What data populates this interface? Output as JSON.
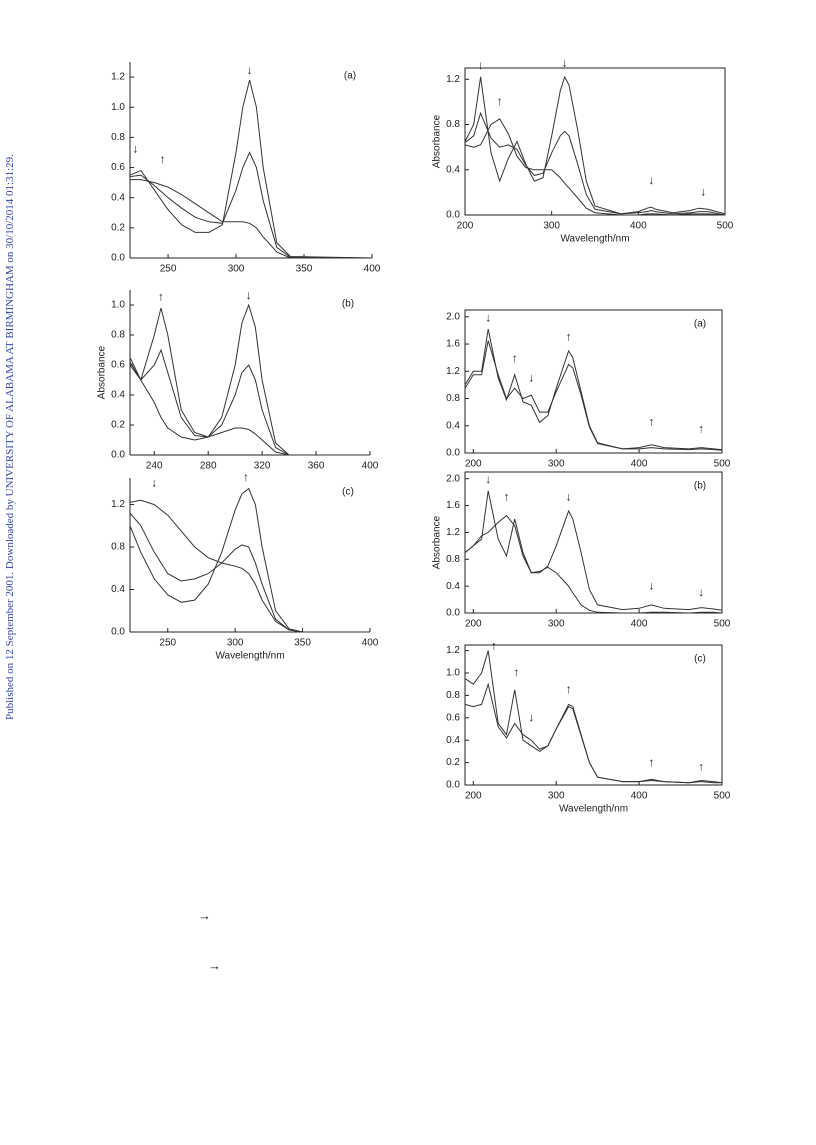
{
  "sidebar": "Published on 12 September 2001. Downloaded by UNIVERSITY OF ALABAMA AT BIRMINGHAM on 30/10/2014 01:31:29.",
  "arrows": [
    "→",
    "→"
  ],
  "chart_data": [
    {
      "type": "line",
      "frame": "axes",
      "panel": "(a)",
      "color": "#333",
      "x": [
        222,
        230,
        240,
        250,
        260,
        270,
        280,
        290,
        300,
        305,
        310,
        315,
        320,
        330,
        340,
        400
      ],
      "series": [
        {
          "values": [
            0.55,
            0.58,
            0.45,
            0.32,
            0.22,
            0.17,
            0.17,
            0.22,
            0.7,
            1.0,
            1.18,
            1.0,
            0.6,
            0.1,
            0.01,
            0
          ]
        },
        {
          "values": [
            0.54,
            0.55,
            0.48,
            0.4,
            0.33,
            0.27,
            0.24,
            0.23,
            0.45,
            0.6,
            0.7,
            0.6,
            0.38,
            0.07,
            0.005,
            0
          ]
        },
        {
          "values": [
            0.52,
            0.52,
            0.5,
            0.47,
            0.42,
            0.36,
            0.3,
            0.24,
            0.24,
            0.24,
            0.23,
            0.2,
            0.14,
            0.04,
            0,
            0
          ]
        }
      ],
      "xlim": [
        222,
        400
      ],
      "xticks": [
        250,
        300,
        350,
        400
      ],
      "ylim": [
        0,
        1.3
      ],
      "yticks": [
        {
          "value": 0,
          "label": "0.0"
        },
        0.2,
        0.4,
        0.6,
        0.8,
        {
          "value": 1,
          "label": "1.0"
        },
        1.2
      ],
      "annotations": [
        {
          "text": "↓",
          "x": 226,
          "y": 0.72
        },
        {
          "text": "↑",
          "x": 246,
          "y": 0.65
        },
        {
          "text": "↓",
          "x": 310,
          "y": 1.24
        }
      ]
    },
    {
      "type": "line",
      "frame": "axes",
      "panel": "(b)",
      "ylabel": "Absorbance",
      "color": "#333",
      "x": [
        222,
        230,
        240,
        245,
        250,
        260,
        270,
        280,
        290,
        300,
        305,
        310,
        315,
        320,
        330,
        340,
        400
      ],
      "series": [
        {
          "values": [
            0.65,
            0.5,
            0.8,
            0.98,
            0.8,
            0.3,
            0.15,
            0.12,
            0.15,
            0.18,
            0.18,
            0.17,
            0.14,
            0.1,
            0.02,
            0,
            0
          ]
        },
        {
          "values": [
            0.62,
            0.5,
            0.6,
            0.7,
            0.55,
            0.25,
            0.13,
            0.12,
            0.2,
            0.4,
            0.55,
            0.6,
            0.5,
            0.3,
            0.05,
            0,
            0
          ]
        },
        {
          "values": [
            0.6,
            0.5,
            0.35,
            0.25,
            0.18,
            0.12,
            0.1,
            0.12,
            0.25,
            0.6,
            0.88,
            1.0,
            0.85,
            0.5,
            0.08,
            0,
            0
          ]
        }
      ],
      "xlim": [
        222,
        400
      ],
      "xticks": [
        240,
        280,
        320,
        360,
        400
      ],
      "ylim": [
        0,
        1.1
      ],
      "yticks": [
        {
          "value": 0,
          "label": "0.0"
        },
        0.2,
        0.4,
        0.6,
        0.8,
        {
          "value": 1,
          "label": "1.0"
        }
      ],
      "annotations": [
        {
          "text": "↑",
          "x": 245,
          "y": 1.05
        },
        {
          "text": "↓",
          "x": 310,
          "y": 1.06
        }
      ]
    },
    {
      "type": "line",
      "frame": "axes",
      "panel": "(c)",
      "xlabel": "Wavelength/nm",
      "color": "#333",
      "x": [
        222,
        230,
        240,
        250,
        260,
        270,
        280,
        290,
        300,
        305,
        310,
        315,
        320,
        330,
        340,
        350,
        400
      ],
      "series": [
        {
          "values": [
            1.22,
            1.24,
            1.2,
            1.1,
            0.95,
            0.8,
            0.7,
            0.65,
            0.62,
            0.6,
            0.55,
            0.45,
            0.3,
            0.1,
            0.02,
            0,
            0
          ]
        },
        {
          "values": [
            1.12,
            1.0,
            0.75,
            0.55,
            0.48,
            0.5,
            0.55,
            0.65,
            0.78,
            0.82,
            0.8,
            0.65,
            0.45,
            0.12,
            0.02,
            0,
            0
          ]
        },
        {
          "values": [
            1.0,
            0.75,
            0.5,
            0.35,
            0.28,
            0.3,
            0.45,
            0.75,
            1.15,
            1.3,
            1.35,
            1.2,
            0.8,
            0.2,
            0.03,
            0,
            0
          ]
        }
      ],
      "xlim": [
        222,
        400
      ],
      "xticks": [
        250,
        300,
        350,
        400
      ],
      "ylim": [
        0,
        1.45
      ],
      "yticks": [
        {
          "value": 0,
          "label": "0.0"
        },
        0.4,
        0.8,
        1.2
      ],
      "annotations": [
        {
          "text": "↓",
          "x": 240,
          "y": 1.4
        },
        {
          "text": "↑",
          "x": 308,
          "y": 1.45
        }
      ]
    },
    {
      "type": "line",
      "frame": "box",
      "ylabel": "Absorbance",
      "xlabel": "Wavelength/nm",
      "color": "#333",
      "x": [
        200,
        210,
        218,
        230,
        240,
        250,
        260,
        270,
        280,
        290,
        300,
        310,
        315,
        320,
        330,
        340,
        350,
        380,
        400,
        410,
        415,
        420,
        440,
        460,
        470,
        480,
        500
      ],
      "series": [
        {
          "values": [
            0.65,
            0.8,
            1.22,
            0.55,
            0.3,
            0.5,
            0.65,
            0.45,
            0.3,
            0.33,
            0.7,
            1.1,
            1.22,
            1.15,
            0.75,
            0.3,
            0.08,
            0.01,
            0.03,
            0.06,
            0.07,
            0.05,
            0.02,
            0.04,
            0.06,
            0.05,
            0.01
          ]
        },
        {
          "values": [
            0.64,
            0.7,
            0.9,
            0.68,
            0.6,
            0.62,
            0.58,
            0.44,
            0.35,
            0.37,
            0.55,
            0.7,
            0.74,
            0.7,
            0.45,
            0.18,
            0.05,
            0.01,
            0.02,
            0.03,
            0.04,
            0.03,
            0.01,
            0.02,
            0.03,
            0.03,
            0
          ]
        },
        {
          "values": [
            0.62,
            0.6,
            0.62,
            0.8,
            0.85,
            0.72,
            0.52,
            0.42,
            0.4,
            0.4,
            0.4,
            0.33,
            0.28,
            0.24,
            0.15,
            0.06,
            0.02,
            0,
            0,
            0.01,
            0.01,
            0.01,
            0,
            0.01,
            0.01,
            0.01,
            0
          ]
        }
      ],
      "xlim": [
        200,
        500
      ],
      "xticks": [
        200,
        300,
        400,
        500
      ],
      "ylim": [
        0,
        1.3
      ],
      "yticks": [
        {
          "value": 0,
          "label": "0.0"
        },
        0.4,
        0.8,
        1.2
      ],
      "annotations": [
        {
          "text": "↓",
          "x": 218,
          "y": 1.32
        },
        {
          "text": "↑",
          "x": 240,
          "y": 1.0
        },
        {
          "text": "↓",
          "x": 315,
          "y": 1.34
        },
        {
          "text": "↓",
          "x": 415,
          "y": 0.3
        },
        {
          "text": "↓",
          "x": 475,
          "y": 0.2
        }
      ]
    },
    {
      "type": "line",
      "frame": "box",
      "panel": "(a)",
      "color": "#333",
      "x": [
        190,
        200,
        210,
        218,
        230,
        240,
        250,
        260,
        270,
        280,
        290,
        300,
        315,
        320,
        330,
        340,
        350,
        380,
        400,
        415,
        430,
        460,
        475,
        490,
        500
      ],
      "series": [
        {
          "values": [
            1.0,
            1.2,
            1.2,
            1.82,
            1.1,
            0.78,
            1.15,
            0.75,
            0.7,
            0.45,
            0.55,
            0.95,
            1.5,
            1.4,
            0.9,
            0.4,
            0.15,
            0.06,
            0.08,
            0.12,
            0.08,
            0.06,
            0.08,
            0.06,
            0.05
          ]
        },
        {
          "values": [
            0.95,
            1.15,
            1.15,
            1.65,
            1.15,
            0.8,
            0.95,
            0.8,
            0.85,
            0.6,
            0.6,
            0.9,
            1.3,
            1.25,
            0.85,
            0.38,
            0.14,
            0.06,
            0.06,
            0.08,
            0.06,
            0.05,
            0.06,
            0.05,
            0.04
          ]
        }
      ],
      "xlim": [
        190,
        500
      ],
      "xticks": [
        200,
        300,
        400,
        500
      ],
      "ylim": [
        0,
        2.1
      ],
      "yticks": [
        {
          "value": 0,
          "label": "0.0"
        },
        0.4,
        0.8,
        1.2,
        1.6,
        {
          "value": 2,
          "label": "2.0"
        }
      ],
      "annotations": [
        {
          "text": "↓",
          "x": 218,
          "y": 1.98
        },
        {
          "text": "↑",
          "x": 250,
          "y": 1.38
        },
        {
          "text": "↓",
          "x": 270,
          "y": 1.1
        },
        {
          "text": "↑",
          "x": 315,
          "y": 1.7
        },
        {
          "text": "↑",
          "x": 415,
          "y": 0.45
        },
        {
          "text": "↑",
          "x": 475,
          "y": 0.35
        }
      ]
    },
    {
      "type": "line",
      "frame": "box",
      "panel": "(b)",
      "ylabel": "Absorbance",
      "color": "#333",
      "x": [
        190,
        200,
        210,
        218,
        230,
        240,
        250,
        260,
        270,
        280,
        290,
        300,
        315,
        320,
        330,
        340,
        350,
        380,
        400,
        415,
        430,
        460,
        475,
        490,
        500
      ],
      "series": [
        {
          "values": [
            0.9,
            1.0,
            1.1,
            1.82,
            1.1,
            0.85,
            1.4,
            0.9,
            0.6,
            0.6,
            0.7,
            1.0,
            1.52,
            1.4,
            0.9,
            0.35,
            0.12,
            0.05,
            0.07,
            0.12,
            0.07,
            0.05,
            0.08,
            0.06,
            0.04
          ]
        },
        {
          "values": [
            0.9,
            1.0,
            1.15,
            1.2,
            1.35,
            1.45,
            1.3,
            0.85,
            0.6,
            0.62,
            0.68,
            0.6,
            0.4,
            0.3,
            0.12,
            0.04,
            0.01,
            0,
            0,
            0.01,
            0.01,
            0,
            0.01,
            0.01,
            0
          ]
        }
      ],
      "xlim": [
        190,
        500
      ],
      "xticks": [
        200,
        300,
        400,
        500
      ],
      "ylim": [
        0,
        2.1
      ],
      "yticks": [
        {
          "value": 0,
          "label": "0.0"
        },
        0.4,
        0.8,
        1.2,
        1.6,
        {
          "value": 2,
          "label": "2.0"
        }
      ],
      "annotations": [
        {
          "text": "↓",
          "x": 218,
          "y": 1.98
        },
        {
          "text": "↑",
          "x": 240,
          "y": 1.72
        },
        {
          "text": "↓",
          "x": 315,
          "y": 1.72
        },
        {
          "text": "↓",
          "x": 415,
          "y": 0.4
        },
        {
          "text": "↓",
          "x": 475,
          "y": 0.3
        }
      ]
    },
    {
      "type": "line",
      "frame": "box",
      "panel": "(c)",
      "xlabel": "Wavelength/nm",
      "color": "#333",
      "x": [
        190,
        200,
        210,
        218,
        230,
        240,
        250,
        260,
        270,
        280,
        290,
        300,
        315,
        320,
        330,
        340,
        350,
        380,
        400,
        415,
        430,
        460,
        475,
        490,
        500
      ],
      "series": [
        {
          "values": [
            0.95,
            0.9,
            1.0,
            1.2,
            0.55,
            0.45,
            0.85,
            0.4,
            0.35,
            0.3,
            0.35,
            0.5,
            0.72,
            0.7,
            0.45,
            0.2,
            0.07,
            0.03,
            0.03,
            0.05,
            0.03,
            0.02,
            0.04,
            0.03,
            0.02
          ]
        },
        {
          "values": [
            0.72,
            0.7,
            0.72,
            0.9,
            0.52,
            0.42,
            0.55,
            0.45,
            0.4,
            0.32,
            0.35,
            0.5,
            0.7,
            0.68,
            0.44,
            0.2,
            0.07,
            0.03,
            0.03,
            0.04,
            0.03,
            0.02,
            0.03,
            0.02,
            0.02
          ]
        }
      ],
      "xlim": [
        190,
        500
      ],
      "xticks": [
        200,
        300,
        400,
        500
      ],
      "ylim": [
        0,
        1.25
      ],
      "yticks": [
        {
          "value": 0,
          "label": "0.0"
        },
        0.2,
        0.4,
        0.6,
        0.8,
        {
          "value": 1,
          "label": "1.0"
        },
        1.2
      ],
      "annotations": [
        {
          "text": "↑",
          "x": 225,
          "y": 1.24
        },
        {
          "text": "↑",
          "x": 252,
          "y": 1.0
        },
        {
          "text": "↓",
          "x": 270,
          "y": 0.6
        },
        {
          "text": "↑",
          "x": 315,
          "y": 0.85
        },
        {
          "text": "↑",
          "x": 415,
          "y": 0.2
        },
        {
          "text": "↑",
          "x": 475,
          "y": 0.16
        }
      ]
    }
  ]
}
